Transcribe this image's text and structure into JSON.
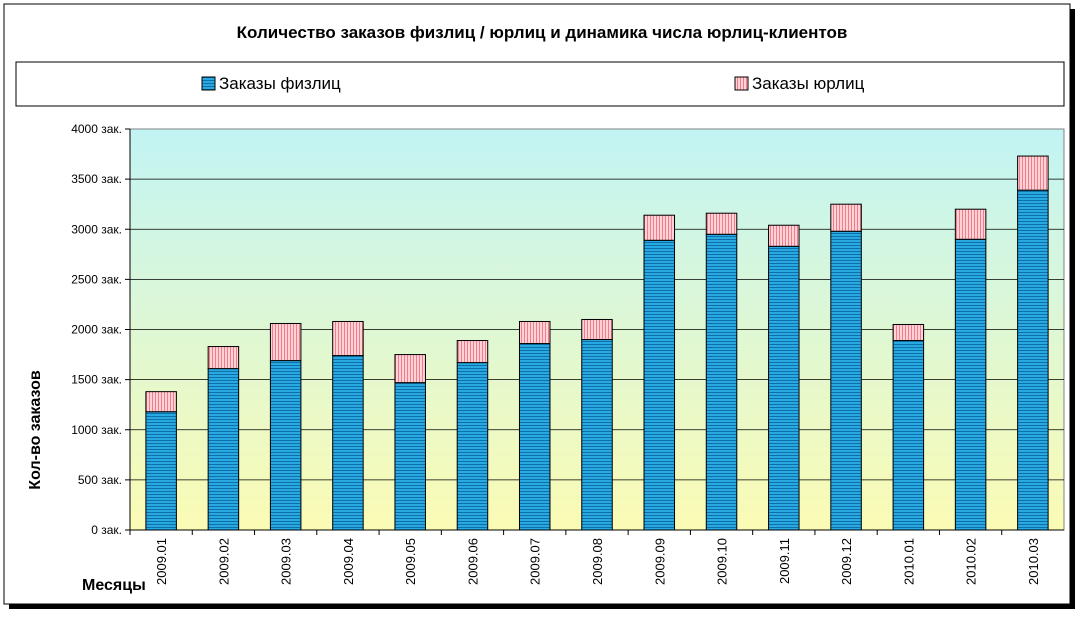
{
  "chart_data": {
    "type": "bar",
    "stacked": true,
    "title": "Количество заказов физлиц / юрлиц и динамика числа юрлиц-клиентов",
    "xlabel": "Месяцы",
    "ylabel": "Кол-во заказов",
    "categories": [
      "2009.01",
      "2009.02",
      "2009.03",
      "2009.04",
      "2009.05",
      "2009.06",
      "2009.07",
      "2009.08",
      "2009.09",
      "2009.10",
      "2009.11",
      "2009.12",
      "2010.01",
      "2010.02",
      "2010.03"
    ],
    "series": [
      {
        "name": "Заказы физлиц",
        "color": "#29a9e1",
        "values": [
          1180,
          1610,
          1690,
          1740,
          1470,
          1670,
          1860,
          1900,
          2890,
          2950,
          2830,
          2980,
          1890,
          2900,
          3390
        ]
      },
      {
        "name": "Заказы юрлиц",
        "color": "#ffb0b8",
        "values": [
          200,
          220,
          370,
          340,
          280,
          220,
          220,
          200,
          250,
          210,
          210,
          270,
          160,
          300,
          340
        ]
      }
    ],
    "yticks": [
      "0 зак.",
      "500 зак.",
      "1000 зак.",
      "1500 зак.",
      "2000 зак.",
      "2500 зак.",
      "3000 зак.",
      "3500 зак.",
      "4000 зак."
    ],
    "ylim": [
      0,
      4000
    ],
    "grid": true,
    "legend_position": "top",
    "background_gradient": [
      "#c2f4f4",
      "#fbfbb4"
    ]
  }
}
